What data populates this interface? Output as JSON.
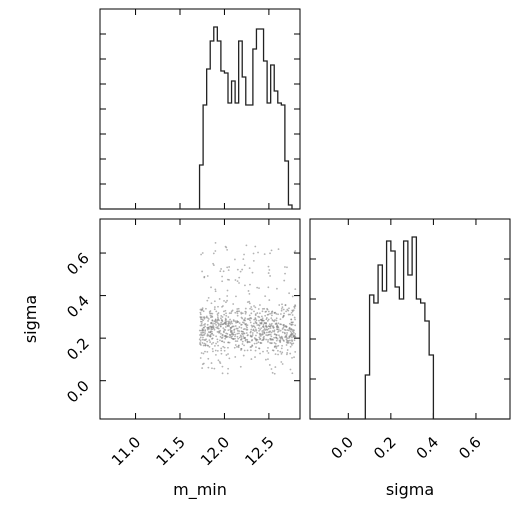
{
  "chart_data": {
    "type": "corner",
    "parameters": [
      "m_min",
      "sigma"
    ],
    "panels": [
      {
        "id": "hist_m_min",
        "type": "histogram",
        "parameter": "m_min",
        "xlim": [
          10.6,
          12.85
        ],
        "ylim": [
          0,
          1.0
        ],
        "show_tick_labels": false,
        "y_ticks_count": 7,
        "bins": {
          "edges": [
            10.6,
            11.72,
            11.76,
            11.8,
            11.84,
            11.88,
            11.92,
            11.96,
            12.0,
            12.04,
            12.08,
            12.12,
            12.16,
            12.2,
            12.24,
            12.28,
            12.32,
            12.36,
            12.4,
            12.44,
            12.48,
            12.52,
            12.56,
            12.6,
            12.64,
            12.68,
            12.72,
            12.76,
            12.8,
            12.85
          ],
          "counts": [
            0,
            0.22,
            0.52,
            0.7,
            0.84,
            0.91,
            0.84,
            0.69,
            0.68,
            0.53,
            0.64,
            0.53,
            0.84,
            0.66,
            0.52,
            0.52,
            0.8,
            0.9,
            0.9,
            0.74,
            0.53,
            0.72,
            0.59,
            0.53,
            0.52,
            0.24,
            0.02,
            0.0,
            0.0
          ]
        }
      },
      {
        "id": "scatter_m_min_sigma",
        "type": "scatter",
        "x_parameter": "m_min",
        "y_parameter": "sigma",
        "xlim": [
          10.6,
          12.85
        ],
        "ylim": [
          -0.18,
          0.76
        ],
        "x_ticks": [
          11.0,
          11.5,
          12.0,
          12.5
        ],
        "x_tick_labels": [
          "11.0",
          "11.5",
          "12.0",
          "12.5"
        ],
        "y_ticks": [
          0.0,
          0.2,
          0.4,
          0.6
        ],
        "y_tick_labels": [
          "0.0",
          "0.2",
          "0.4",
          "0.6"
        ],
        "xlabel": "m_min",
        "ylabel": "sigma",
        "point_cloud": {
          "n_points": 900,
          "x_range": [
            11.72,
            12.8
          ],
          "y_range": [
            0.03,
            0.65
          ],
          "dense_y_range": [
            0.08,
            0.4
          ],
          "color": "#808080"
        }
      },
      {
        "id": "hist_sigma",
        "type": "histogram",
        "parameter": "sigma",
        "xlim": [
          -0.18,
          0.76
        ],
        "ylim": [
          0,
          1.0
        ],
        "x_ticks": [
          0.0,
          0.2,
          0.4,
          0.6
        ],
        "x_tick_labels": [
          "0.0",
          "0.2",
          "0.4",
          "0.6"
        ],
        "xlabel": "sigma",
        "y_ticks_count": 4,
        "bins": {
          "edges": [
            -0.18,
            0.08,
            0.1,
            0.12,
            0.14,
            0.16,
            0.18,
            0.2,
            0.22,
            0.24,
            0.26,
            0.28,
            0.3,
            0.32,
            0.34,
            0.36,
            0.38,
            0.4,
            0.76
          ],
          "counts": [
            0,
            0.22,
            0.62,
            0.58,
            0.77,
            0.64,
            0.89,
            0.84,
            0.66,
            0.6,
            0.89,
            0.72,
            0.91,
            0.6,
            0.58,
            0.49,
            0.32,
            0.0
          ]
        }
      }
    ],
    "colors": {
      "line": "#222222",
      "axes": "#000000"
    }
  }
}
